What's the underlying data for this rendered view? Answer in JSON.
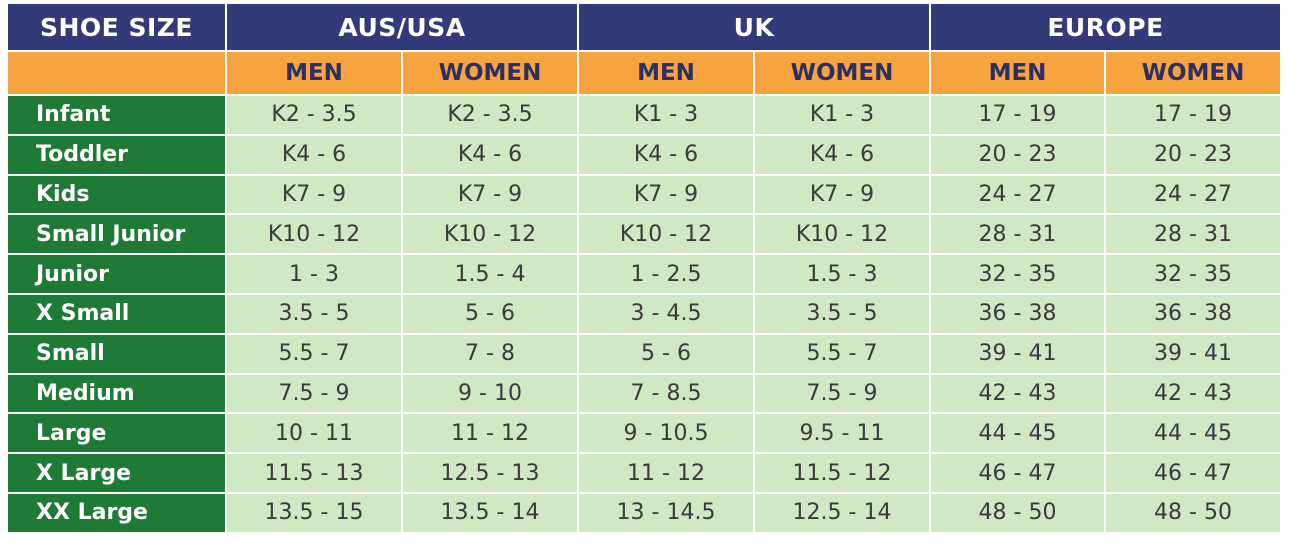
{
  "header": {
    "corner": "SHOE SIZE",
    "regions": [
      "AUS/USA",
      "UK",
      "EUROPE"
    ],
    "genders": [
      "MEN",
      "WOMEN",
      "MEN",
      "WOMEN",
      "MEN",
      "WOMEN"
    ]
  },
  "rows": [
    {
      "label": "Infant",
      "values": [
        "K2 - 3.5",
        "K2 - 3.5",
        "K1 - 3",
        "K1 - 3",
        "17 - 19",
        "17 - 19"
      ]
    },
    {
      "label": "Toddler",
      "values": [
        "K4 - 6",
        "K4 - 6",
        "K4 - 6",
        "K4 - 6",
        "20 - 23",
        "20 - 23"
      ]
    },
    {
      "label": "Kids",
      "values": [
        "K7 - 9",
        "K7 - 9",
        "K7 - 9",
        "K7 - 9",
        "24 - 27",
        "24 - 27"
      ]
    },
    {
      "label": "Small Junior",
      "values": [
        "K10 - 12",
        "K10 - 12",
        "K10 - 12",
        "K10 - 12",
        "28 - 31",
        "28 - 31"
      ]
    },
    {
      "label": "Junior",
      "values": [
        "1 - 3",
        "1.5 - 4",
        "1 - 2.5",
        "1.5 - 3",
        "32 - 35",
        "32 - 35"
      ]
    },
    {
      "label": "X Small",
      "values": [
        "3.5 - 5",
        "5 - 6",
        "3 - 4.5",
        "3.5 - 5",
        "36 - 38",
        "36 - 38"
      ]
    },
    {
      "label": "Small",
      "values": [
        "5.5 - 7",
        "7 - 8",
        "5 - 6",
        "5.5 - 7",
        "39 - 41",
        "39 - 41"
      ]
    },
    {
      "label": "Medium",
      "values": [
        "7.5 - 9",
        "9 - 10",
        "7 - 8.5",
        "7.5 - 9",
        "42 - 43",
        "42 - 43"
      ]
    },
    {
      "label": "Large",
      "values": [
        "10 - 11",
        "11 - 12",
        "9 - 10.5",
        "9.5 - 11",
        "44 - 45",
        "44 - 45"
      ]
    },
    {
      "label": "X Large",
      "values": [
        "11.5 - 13",
        "12.5 - 13",
        "11 - 12",
        "11.5 - 12",
        "46 - 47",
        "46 - 47"
      ]
    },
    {
      "label": "XX Large",
      "values": [
        "13.5 - 15",
        "13.5 - 14",
        "13 - 14.5",
        "12.5 - 14",
        "48 - 50",
        "48 - 50"
      ]
    }
  ],
  "colors": {
    "header_bg": "#323a78",
    "subheader_bg": "#f6a340",
    "row_label_bg": "#1f7a35",
    "cell_bg": "#d1e8c4"
  }
}
